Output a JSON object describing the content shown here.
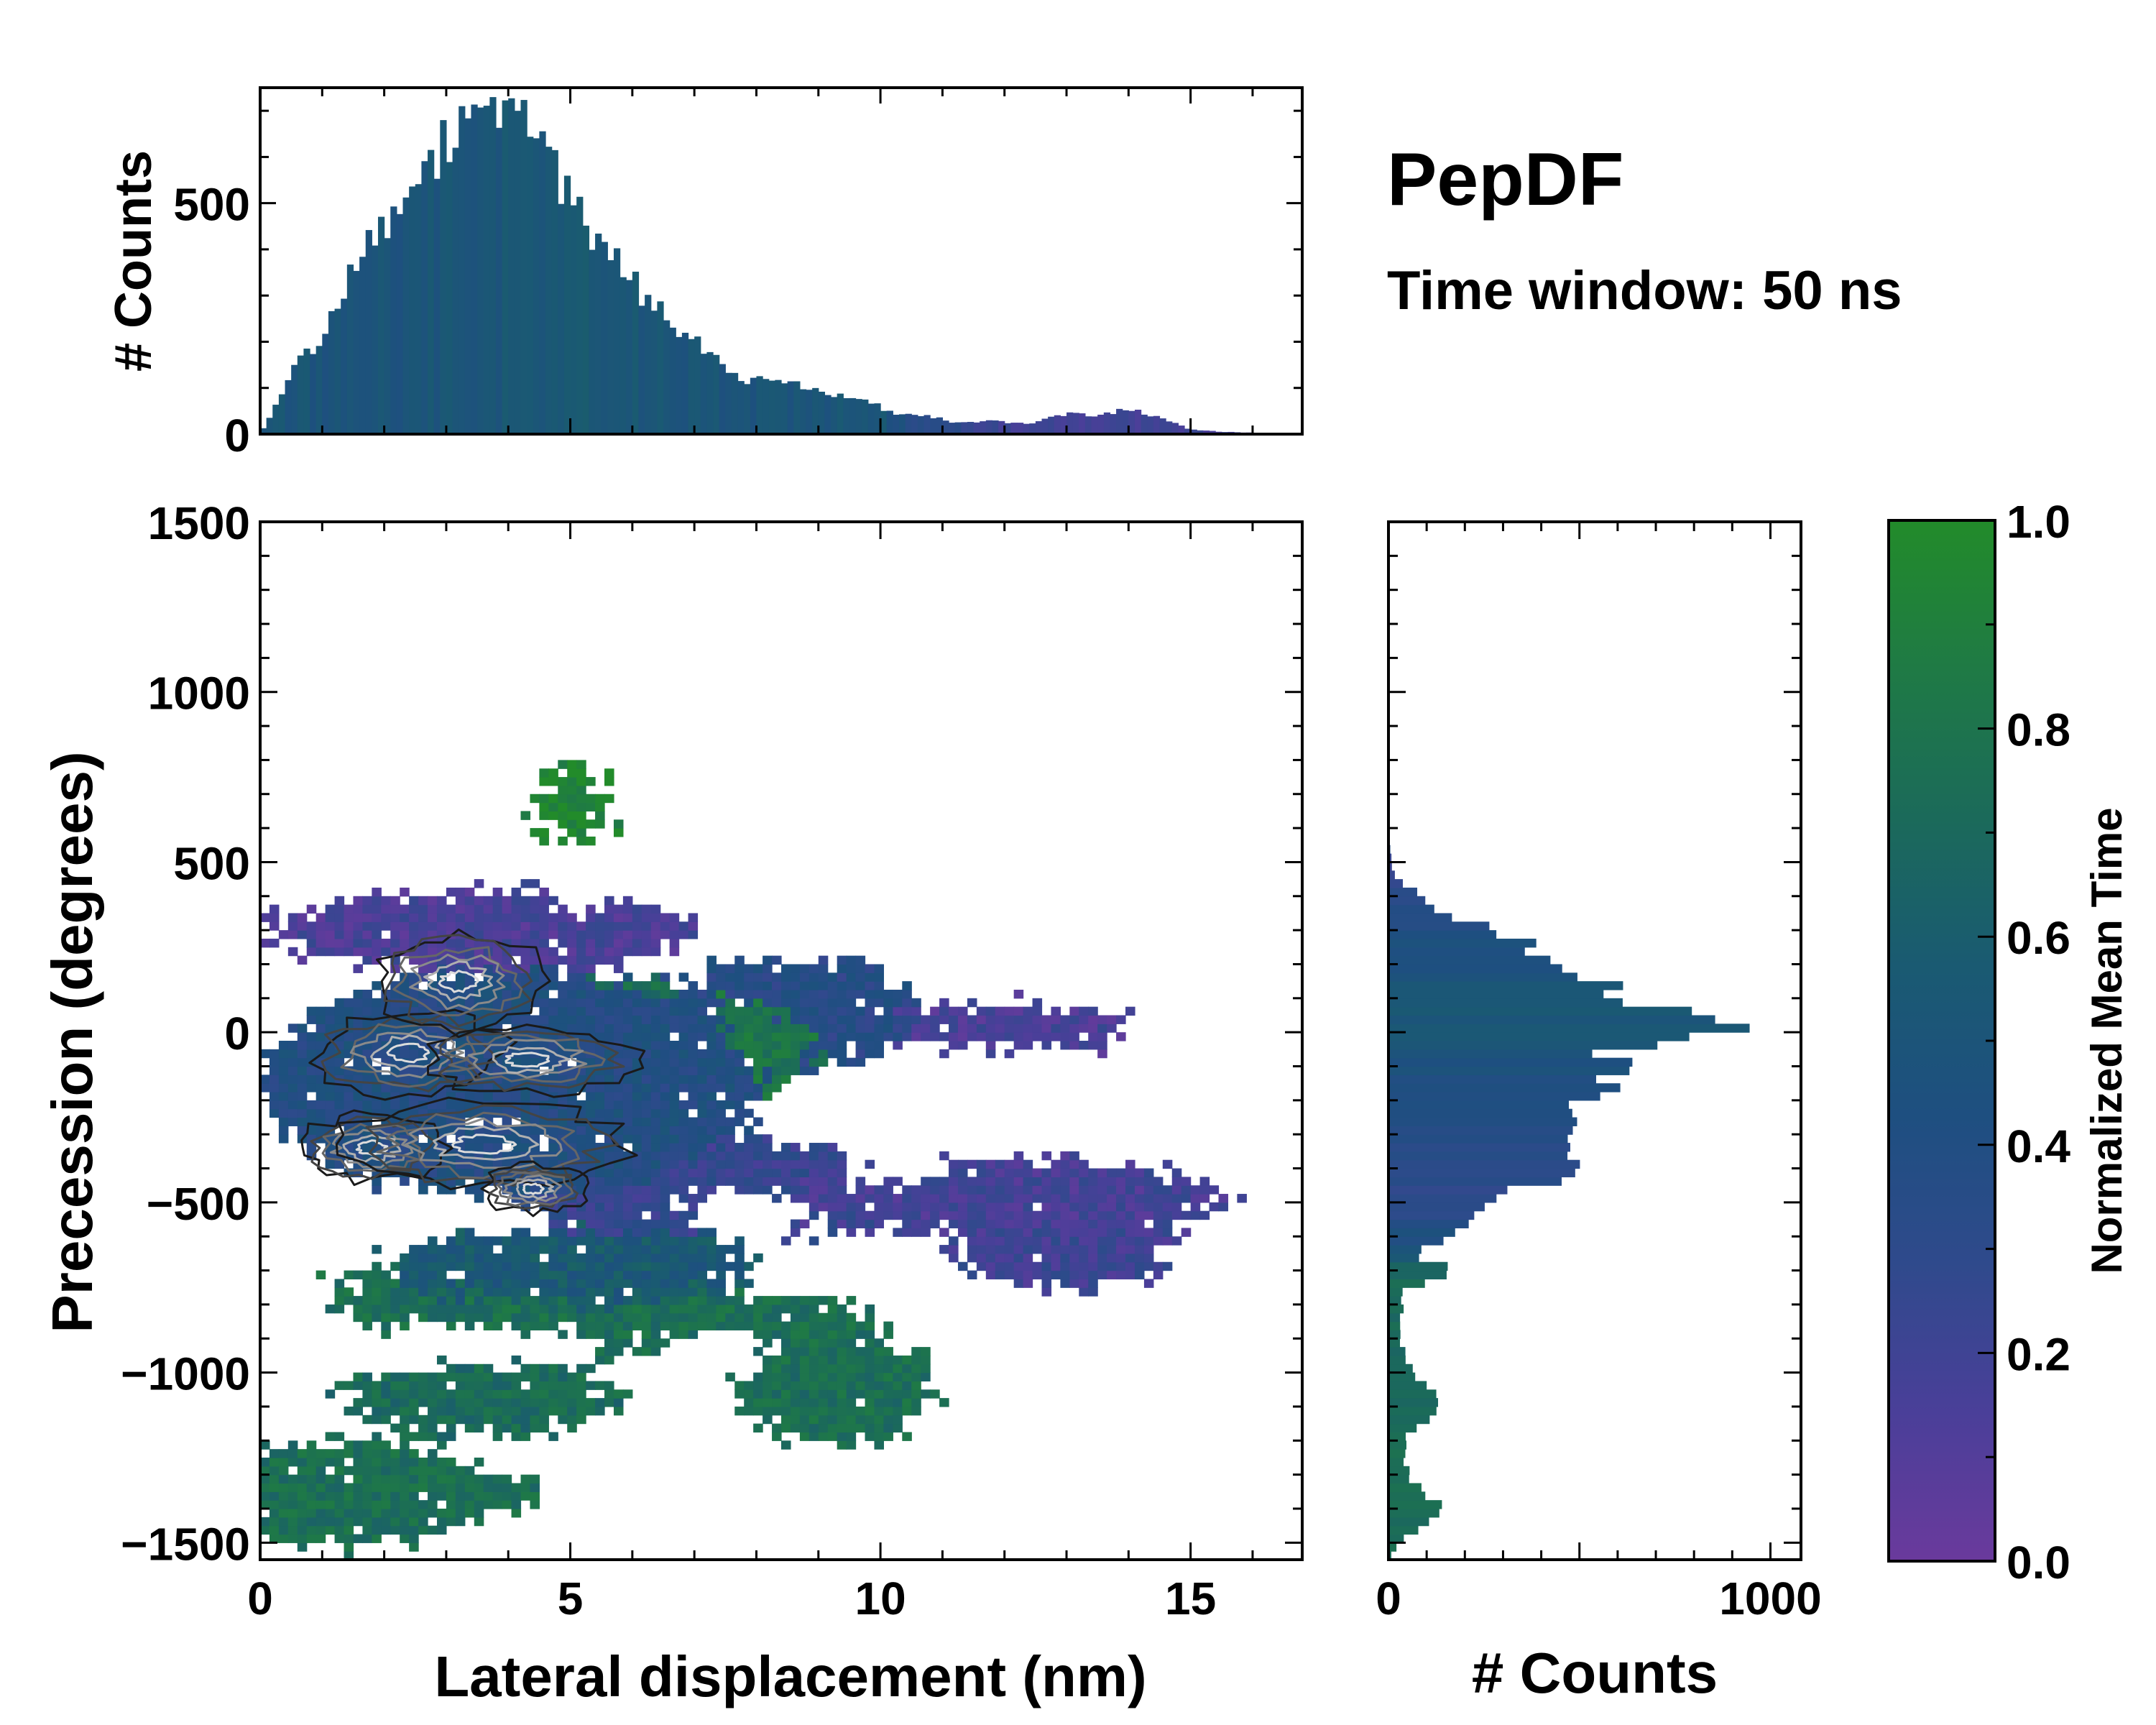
{
  "title": "PepDF",
  "subtitle": "Time window: 50 ns",
  "colors": {
    "cmap": [
      "#6a3a9c",
      "#4a3f99",
      "#2f4a8c",
      "#1e4f80",
      "#1a5a72",
      "#1b6a5a",
      "#1f7a45",
      "#228b2a"
    ],
    "contour_line": "#111111",
    "frame": "#000000"
  },
  "chart_data": [
    {
      "name": "top-histogram",
      "type": "bar",
      "orientation": "vertical",
      "ylabel": "# Counts",
      "xlim": [
        0,
        16.8
      ],
      "ylim": [
        0,
        750
      ],
      "yticks": [
        0,
        500
      ],
      "ytick_labels": [
        "0",
        "500"
      ],
      "bin_width": 0.1,
      "profile_knots": [
        [
          0.0,
          0
        ],
        [
          0.3,
          70
        ],
        [
          0.6,
          150
        ],
        [
          1.0,
          210
        ],
        [
          1.4,
          330
        ],
        [
          1.8,
          430
        ],
        [
          2.2,
          490
        ],
        [
          2.6,
          540
        ],
        [
          3.0,
          630
        ],
        [
          3.4,
          680
        ],
        [
          3.8,
          670
        ],
        [
          4.2,
          680
        ],
        [
          4.6,
          600
        ],
        [
          5.0,
          500
        ],
        [
          5.4,
          420
        ],
        [
          5.8,
          360
        ],
        [
          6.2,
          300
        ],
        [
          6.6,
          250
        ],
        [
          7.0,
          200
        ],
        [
          7.4,
          150
        ],
        [
          7.8,
          120
        ],
        [
          8.2,
          120
        ],
        [
          8.6,
          110
        ],
        [
          9.0,
          90
        ],
        [
          9.4,
          85
        ],
        [
          9.8,
          70
        ],
        [
          10.2,
          45
        ],
        [
          10.8,
          40
        ],
        [
          11.2,
          25
        ],
        [
          11.8,
          30
        ],
        [
          12.4,
          20
        ],
        [
          13.0,
          45
        ],
        [
          13.5,
          40
        ],
        [
          14.0,
          55
        ],
        [
          14.5,
          35
        ],
        [
          15.0,
          10
        ],
        [
          15.5,
          5
        ],
        [
          16.8,
          0
        ]
      ],
      "color_value_knots": [
        [
          0.0,
          0.5
        ],
        [
          3.0,
          0.5
        ],
        [
          5.0,
          0.55
        ],
        [
          7.0,
          0.5
        ],
        [
          9.0,
          0.5
        ],
        [
          10.0,
          0.55
        ],
        [
          10.5,
          0.35
        ],
        [
          12.0,
          0.2
        ],
        [
          14.0,
          0.18
        ],
        [
          16.8,
          0.2
        ]
      ]
    },
    {
      "name": "main-heatmap",
      "type": "heatmap",
      "xlabel": "Lateral displacement (nm)",
      "ylabel": "Precession (degrees)",
      "xlim": [
        0,
        16.8
      ],
      "ylim": [
        -1550,
        1500
      ],
      "xticks": [
        0,
        5,
        10,
        15
      ],
      "xtick_labels": [
        "0",
        "5",
        "10",
        "15"
      ],
      "yticks": [
        1500,
        1000,
        500,
        0,
        -500,
        -1000,
        -1500
      ],
      "ytick_labels": [
        "1500",
        "1000",
        "500",
        "0",
        "−500",
        "−1000",
        "−1500"
      ],
      "bin_width": [
        0.15,
        25
      ],
      "regions": [
        {
          "shape": "ellipse",
          "center": [
            3.6,
            300
          ],
          "radius": [
            3.4,
            120
          ],
          "value": 0.15
        },
        {
          "shape": "ellipse",
          "center": [
            4.0,
            -150
          ],
          "radius": [
            4.0,
            330
          ],
          "value": 0.4
        },
        {
          "shape": "ellipse",
          "center": [
            5.5,
            -50
          ],
          "radius": [
            1.8,
            220
          ],
          "value": 0.75
        },
        {
          "shape": "ellipse",
          "center": [
            7.5,
            -50
          ],
          "radius": [
            1.3,
            150
          ],
          "value": 0.8
        },
        {
          "shape": "ellipse",
          "center": [
            8.5,
            50
          ],
          "radius": [
            2.0,
            170
          ],
          "value": 0.35
        },
        {
          "shape": "ellipse",
          "center": [
            11.8,
            20
          ],
          "radius": [
            2.3,
            70
          ],
          "value": 0.15
        },
        {
          "shape": "ellipse",
          "center": [
            12.0,
            -480
          ],
          "radius": [
            3.5,
            110
          ],
          "value": 0.17
        },
        {
          "shape": "ellipse",
          "center": [
            13.0,
            -600
          ],
          "radius": [
            1.8,
            160
          ],
          "value": 0.2
        },
        {
          "shape": "ellipse",
          "center": [
            7.5,
            -460
          ],
          "radius": [
            3.5,
            150
          ],
          "value": 0.25
        },
        {
          "shape": "ellipse",
          "center": [
            5.0,
            -680
          ],
          "radius": [
            3.0,
            110
          ],
          "value": 0.55
        },
        {
          "shape": "ellipse",
          "center": [
            3.5,
            -780
          ],
          "radius": [
            2.5,
            100
          ],
          "value": 0.75
        },
        {
          "shape": "ellipse",
          "center": [
            7.5,
            -870
          ],
          "radius": [
            2.5,
            110
          ],
          "value": 0.75
        },
        {
          "shape": "ellipse",
          "center": [
            9.3,
            -1050
          ],
          "radius": [
            1.6,
            160
          ],
          "value": 0.75
        },
        {
          "shape": "ellipse",
          "center": [
            3.5,
            -1080
          ],
          "radius": [
            2.3,
            100
          ],
          "value": 0.72
        },
        {
          "shape": "ellipse",
          "center": [
            1.5,
            -1350
          ],
          "radius": [
            2.0,
            160
          ],
          "value": 0.75
        },
        {
          "shape": "ellipse",
          "center": [
            3.0,
            -1350
          ],
          "radius": [
            1.5,
            80
          ],
          "value": 0.75
        },
        {
          "shape": "ellipse",
          "center": [
            5.0,
            680
          ],
          "radius": [
            0.55,
            130
          ],
          "value": 0.95
        }
      ],
      "holes": [
        {
          "center": [
            5.3,
            400
          ],
          "radius": [
            0.5,
            60
          ]
        },
        {
          "center": [
            10.2,
            -320
          ],
          "radius": [
            0.8,
            140
          ]
        },
        {
          "center": [
            7.3,
            -940
          ],
          "radius": [
            0.9,
            80
          ]
        },
        {
          "center": [
            9.0,
            -250
          ],
          "radius": [
            0.5,
            80
          ]
        },
        {
          "center": [
            11.0,
            -180
          ],
          "radius": [
            0.6,
            60
          ]
        },
        {
          "center": [
            7.8,
            -540
          ],
          "radius": [
            1.0,
            80
          ]
        },
        {
          "center": [
            6.5,
            -1010
          ],
          "radius": [
            0.7,
            60
          ]
        }
      ],
      "contour_peaks": [
        {
          "center": [
            2.4,
            -60
          ],
          "sigma": [
            1.1,
            90
          ]
        },
        {
          "center": [
            4.3,
            -80
          ],
          "sigma": [
            1.2,
            70
          ]
        },
        {
          "center": [
            3.2,
            150
          ],
          "sigma": [
            1.0,
            100
          ]
        },
        {
          "center": [
            1.8,
            -340
          ],
          "sigma": [
            0.8,
            70
          ]
        },
        {
          "center": [
            3.6,
            -330
          ],
          "sigma": [
            1.6,
            90
          ]
        },
        {
          "center": [
            4.4,
            -460
          ],
          "sigma": [
            0.6,
            50
          ]
        }
      ]
    },
    {
      "name": "right-histogram",
      "type": "bar",
      "orientation": "horizontal",
      "xlabel": "# Counts",
      "xlim": [
        0,
        1080
      ],
      "ylim": [
        -1550,
        1500
      ],
      "xticks": [
        0,
        1000
      ],
      "xtick_labels": [
        "0",
        "1000"
      ],
      "bin_width": 25,
      "profile_knots": [
        [
          620,
          0
        ],
        [
          470,
          10
        ],
        [
          420,
          60
        ],
        [
          350,
          150
        ],
        [
          300,
          300
        ],
        [
          250,
          380
        ],
        [
          150,
          520
        ],
        [
          100,
          660
        ],
        [
          60,
          760
        ],
        [
          20,
          740
        ],
        [
          0,
          980
        ],
        [
          -40,
          640
        ],
        [
          -100,
          560
        ],
        [
          -200,
          520
        ],
        [
          -300,
          460
        ],
        [
          -400,
          500
        ],
        [
          -500,
          240
        ],
        [
          -600,
          170
        ],
        [
          -650,
          60
        ],
        [
          -700,
          160
        ],
        [
          -760,
          40
        ],
        [
          -900,
          30
        ],
        [
          -1000,
          60
        ],
        [
          -1100,
          140
        ],
        [
          -1200,
          40
        ],
        [
          -1300,
          50
        ],
        [
          -1400,
          140
        ],
        [
          -1500,
          30
        ],
        [
          -1550,
          0
        ]
      ],
      "color_value_knots": [
        [
          620,
          0.7
        ],
        [
          500,
          0.2
        ],
        [
          300,
          0.4
        ],
        [
          100,
          0.5
        ],
        [
          0,
          0.55
        ],
        [
          -100,
          0.45
        ],
        [
          -300,
          0.35
        ],
        [
          -500,
          0.28
        ],
        [
          -650,
          0.5
        ],
        [
          -700,
          0.7
        ],
        [
          -1550,
          0.75
        ]
      ]
    },
    {
      "name": "colorbar",
      "type": "colorbar",
      "label": "Normalized Mean Time",
      "range": [
        0,
        1
      ],
      "ticks": [
        0.0,
        0.2,
        0.4,
        0.6,
        0.8,
        1.0
      ],
      "tick_labels": [
        "0.0",
        "0.2",
        "0.4",
        "0.6",
        "0.8",
        "1.0"
      ]
    }
  ]
}
